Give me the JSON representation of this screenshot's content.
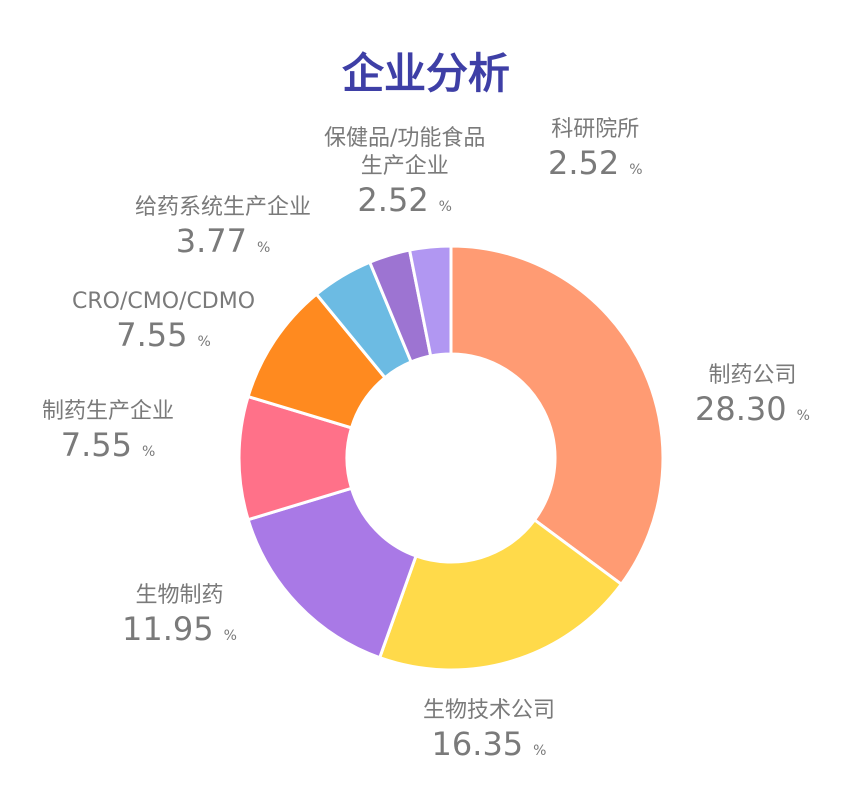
{
  "chart_data": {
    "type": "pie",
    "title": "企业分析",
    "categories": [
      "制药公司",
      "生物技术公司",
      "生物制药",
      "制药生产企业",
      "CRO/CMO/CDMO",
      "给药系统生产企业",
      "保健品/功能食品生产企业",
      "科研院所"
    ],
    "values": [
      28.3,
      16.35,
      11.95,
      7.55,
      7.55,
      3.77,
      2.52,
      2.52
    ],
    "unit": "%",
    "colors": [
      "#FF9B73",
      "#FFDA4A",
      "#A979E6",
      "#FF7189",
      "#FF8A1F",
      "#6CBBE3",
      "#9D74D2",
      "#B197F2"
    ],
    "labels": [
      {
        "name": "制药公司",
        "value": "28.30",
        "pct": "%"
      },
      {
        "name": "生物技术公司",
        "value": "16.35",
        "pct": "%"
      },
      {
        "name": "生物制药",
        "value": "11.95",
        "pct": "%"
      },
      {
        "name": "制药生产企业",
        "value": "7.55",
        "pct": "%"
      },
      {
        "name": "CRO/CMO/CDMO",
        "value": "7.55",
        "pct": "%"
      },
      {
        "name": "给药系统生产企业",
        "value": "3.77",
        "pct": "%"
      },
      {
        "name": "保健品/功能食品\n生产企业",
        "value": "2.52",
        "pct": "%"
      },
      {
        "name": "科研院所",
        "value": "2.52",
        "pct": "%"
      }
    ]
  }
}
